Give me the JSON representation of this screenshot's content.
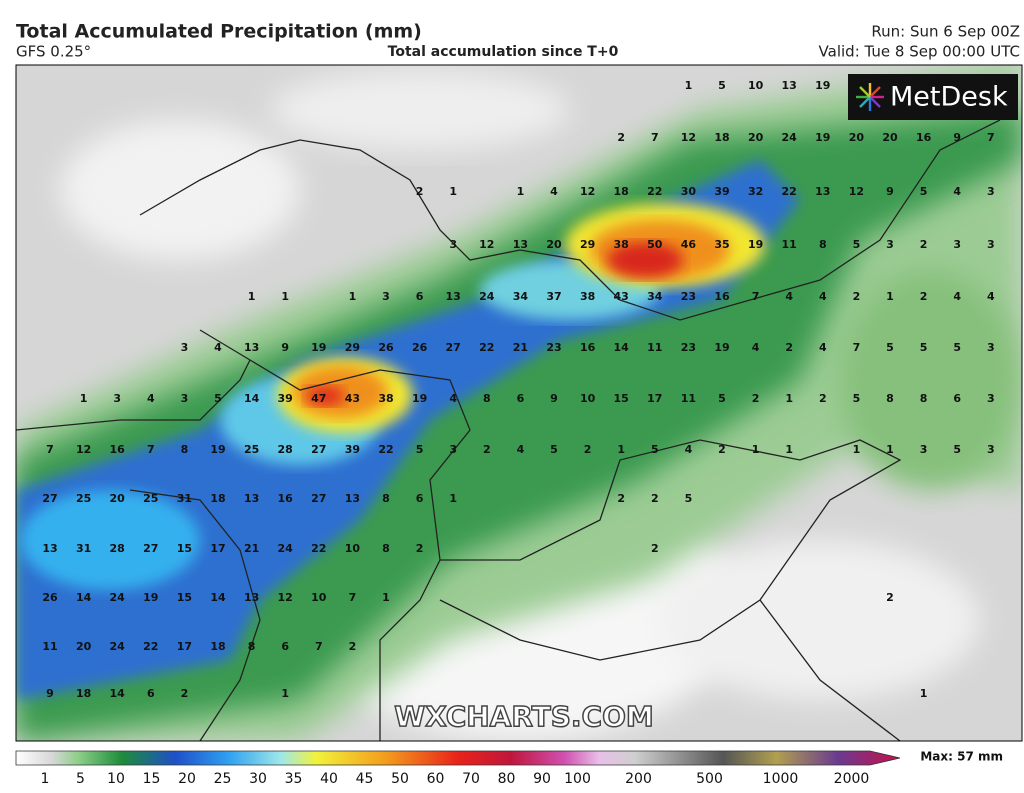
{
  "header": {
    "title": "Total Accumulated Precipitation (mm)",
    "model": "GFS 0.25°",
    "subtitle": "Total accumulation since T+0",
    "run": "Run: Sun 6 Sep 00Z",
    "valid": "Valid: Tue 8 Sep 00:00 UTC"
  },
  "logo": "MetDesk",
  "watermark": "WXCHARTS.COM",
  "map": {
    "rows": [
      [
        null,
        null,
        null,
        null,
        null,
        null,
        null,
        null,
        null,
        null,
        null,
        null,
        null,
        null,
        null,
        null,
        null,
        null,
        null,
        1,
        5,
        10,
        13,
        19,
        null,
        null,
        null,
        null,
        null
      ],
      [
        null,
        null,
        null,
        null,
        null,
        null,
        null,
        null,
        null,
        null,
        null,
        null,
        null,
        null,
        null,
        null,
        null,
        2,
        7,
        12,
        18,
        20,
        24,
        19,
        20,
        20,
        16,
        9,
        7
      ],
      [
        null,
        null,
        null,
        null,
        null,
        null,
        null,
        null,
        null,
        null,
        null,
        2,
        1,
        null,
        1,
        4,
        12,
        18,
        22,
        30,
        39,
        32,
        22,
        13,
        12,
        9,
        5,
        4,
        3
      ],
      [
        null,
        null,
        null,
        null,
        null,
        null,
        null,
        null,
        null,
        null,
        null,
        null,
        3,
        12,
        13,
        20,
        29,
        38,
        50,
        46,
        35,
        19,
        11,
        8,
        5,
        3,
        2,
        3,
        3
      ],
      [
        null,
        null,
        null,
        null,
        null,
        null,
        1,
        1,
        null,
        1,
        3,
        6,
        13,
        24,
        34,
        37,
        38,
        43,
        34,
        23,
        16,
        7,
        4,
        4,
        2,
        1,
        2,
        4,
        4
      ],
      [
        null,
        null,
        null,
        null,
        3,
        4,
        13,
        9,
        19,
        29,
        26,
        26,
        27,
        22,
        21,
        23,
        16,
        14,
        11,
        23,
        19,
        4,
        2,
        4,
        7,
        5,
        5,
        5,
        3
      ],
      [
        null,
        1,
        3,
        4,
        3,
        5,
        14,
        39,
        47,
        43,
        38,
        19,
        4,
        8,
        6,
        9,
        10,
        15,
        17,
        11,
        5,
        2,
        1,
        2,
        5,
        8,
        8,
        6,
        3
      ],
      [
        7,
        12,
        16,
        7,
        8,
        19,
        25,
        28,
        27,
        39,
        22,
        5,
        3,
        2,
        4,
        5,
        2,
        1,
        5,
        4,
        2,
        1,
        1,
        null,
        1,
        1,
        3,
        5,
        3
      ],
      [
        27,
        25,
        20,
        25,
        31,
        18,
        13,
        16,
        27,
        13,
        8,
        6,
        1,
        null,
        null,
        null,
        null,
        2,
        2,
        5,
        null,
        null,
        null,
        null,
        null,
        null,
        null,
        null,
        null
      ],
      [
        13,
        31,
        28,
        27,
        15,
        17,
        21,
        24,
        22,
        10,
        8,
        2,
        null,
        null,
        null,
        null,
        null,
        null,
        2,
        null,
        null,
        null,
        null,
        null,
        null,
        null,
        null,
        null,
        null
      ],
      [
        26,
        14,
        24,
        19,
        15,
        14,
        13,
        12,
        10,
        7,
        1,
        null,
        null,
        null,
        null,
        null,
        null,
        null,
        null,
        null,
        null,
        null,
        null,
        null,
        null,
        2,
        null,
        null,
        null
      ],
      [
        11,
        20,
        24,
        22,
        17,
        18,
        8,
        6,
        7,
        2,
        null,
        null,
        null,
        null,
        null,
        null,
        null,
        null,
        null,
        null,
        null,
        null,
        null,
        null,
        null,
        null,
        null,
        null,
        null
      ],
      [
        9,
        18,
        14,
        6,
        2,
        null,
        null,
        1,
        null,
        null,
        null,
        null,
        null,
        null,
        null,
        null,
        null,
        null,
        null,
        null,
        null,
        null,
        null,
        null,
        null,
        null,
        1,
        null,
        null
      ]
    ]
  },
  "colorbar": {
    "labels": [
      1,
      5,
      10,
      15,
      20,
      25,
      30,
      35,
      40,
      45,
      50,
      60,
      70,
      80,
      90,
      100,
      200,
      500,
      1000,
      2000
    ],
    "max": "Max: 57 mm"
  }
}
